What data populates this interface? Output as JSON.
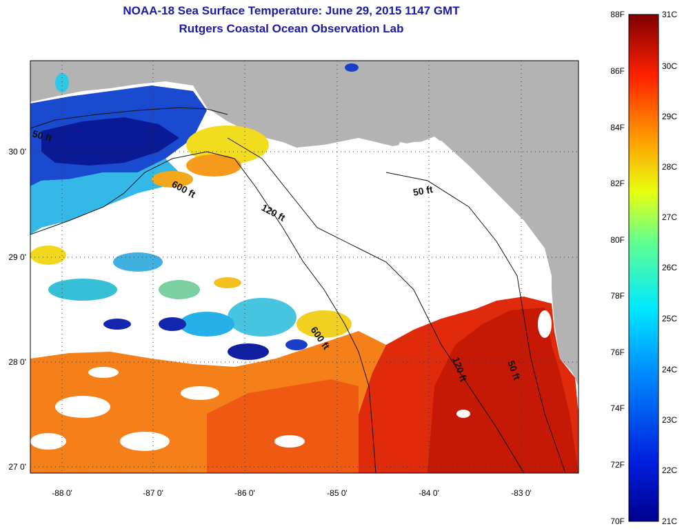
{
  "title": {
    "line1": "NOAA-18 Sea Surface Temperature:  June 29, 2015 1147 GMT",
    "line2": "Rutgers Coastal Ocean Observation Lab"
  },
  "axes": {
    "lon_ticks": [
      "-88 0'",
      "-87 0'",
      "-86 0'",
      "-85 0'",
      "-84 0'",
      "-83 0'"
    ],
    "lat_ticks": [
      "30 0'",
      "29 0'",
      "28 0'",
      "27 0'"
    ]
  },
  "contours": [
    "50 ft",
    "600 ft",
    "120 ft",
    "50 ft",
    "600 ft",
    "120 ft",
    "50 ft"
  ],
  "colorbar": {
    "fahrenheit": [
      "88F",
      "86F",
      "84F",
      "82F",
      "80F",
      "78F",
      "76F",
      "74F",
      "72F",
      "70F"
    ],
    "celsius": [
      "31C",
      "30C",
      "29C",
      "28C",
      "27C",
      "26C",
      "25C",
      "24C",
      "23C",
      "22C",
      "21C"
    ]
  },
  "colors": {
    "land": "#b3b3b3",
    "cloud": "#ffffff",
    "title": "#1a1aa6",
    "warm_dark": "#c81808",
    "warm": "#e83010",
    "orange": "#f58a16",
    "yellow": "#f2e21a",
    "cyan": "#2ec8e6",
    "blue": "#1a3ec8",
    "navy": "#08108a"
  }
}
